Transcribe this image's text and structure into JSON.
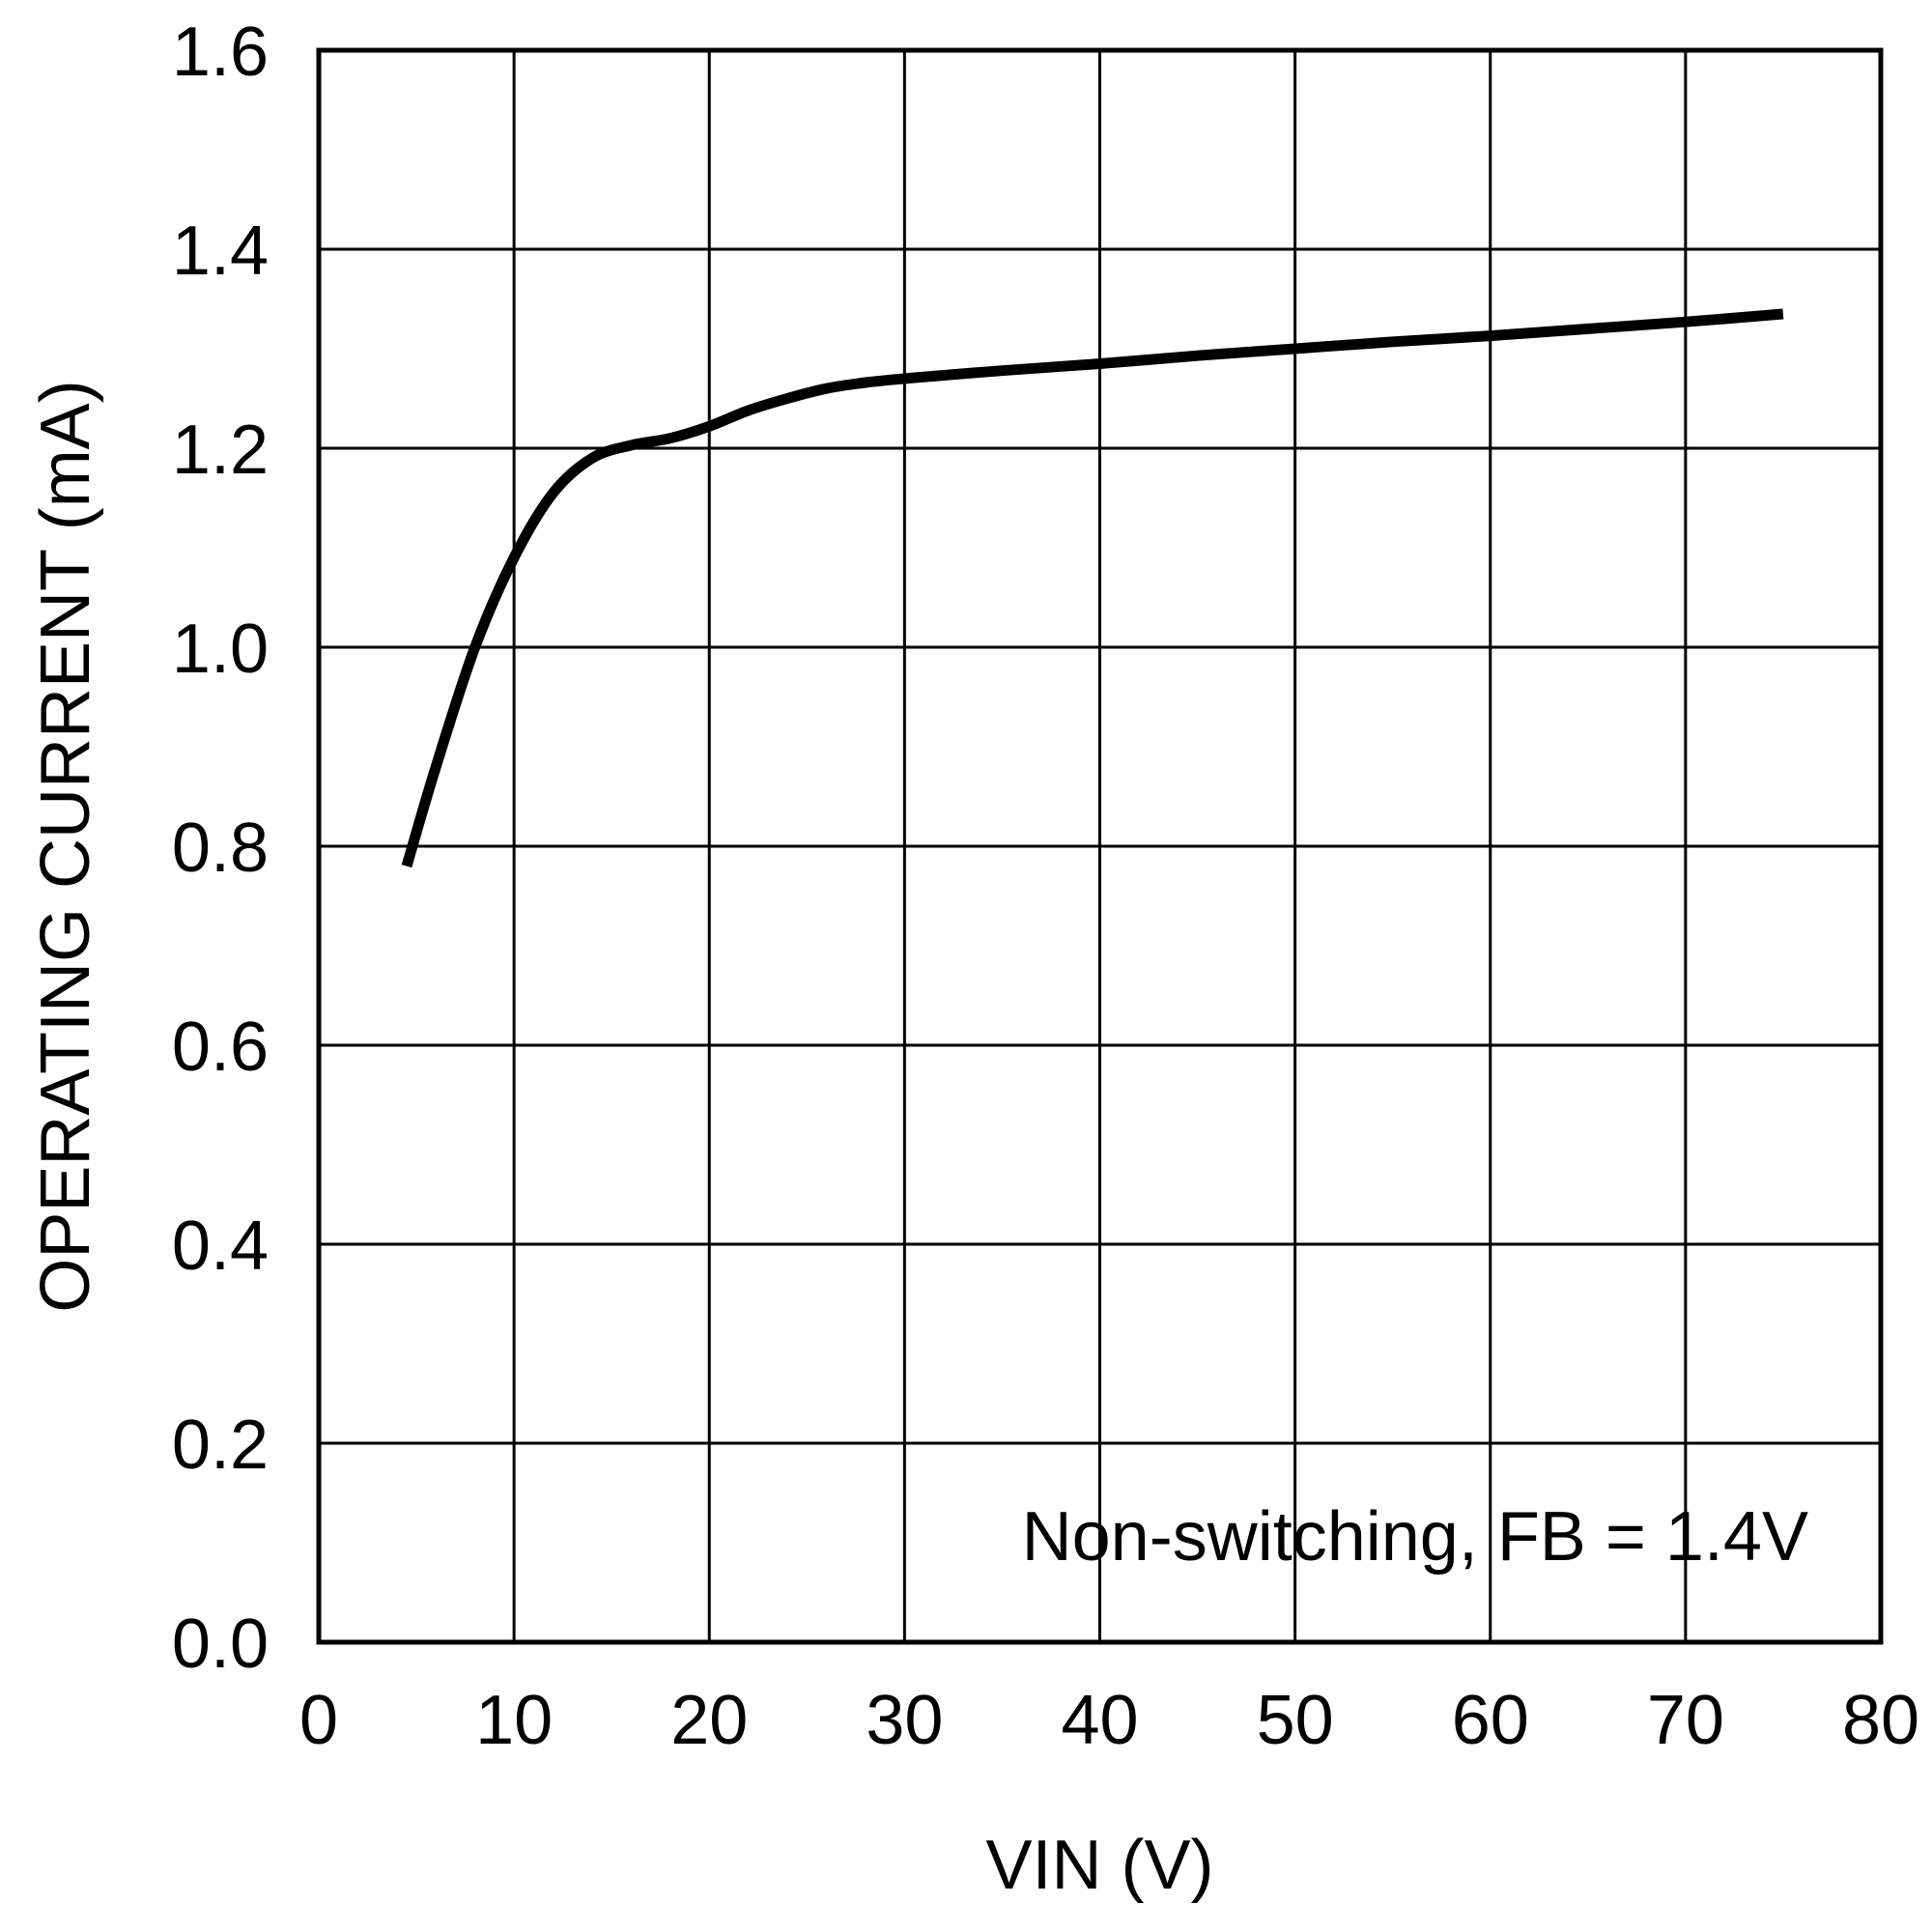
{
  "chart_data": {
    "type": "line",
    "xlabel": "VIN (V)",
    "ylabel": "OPERATING CURRENT (mA)",
    "xlim": [
      0,
      80
    ],
    "ylim": [
      0.0,
      1.6
    ],
    "x_ticks": [
      "0",
      "10",
      "20",
      "30",
      "40",
      "50",
      "60",
      "70",
      "80"
    ],
    "y_ticks": [
      "0.0",
      "0.2",
      "0.4",
      "0.6",
      "0.8",
      "1.0",
      "1.2",
      "1.4",
      "1.6"
    ],
    "grid": true,
    "annotation": "Non-switching, FB = 1.4V",
    "series": [
      {
        "color": "#000000",
        "x": [
          4.5,
          6,
          8,
          10,
          12,
          14,
          16,
          18,
          20,
          22,
          24,
          26,
          28,
          30,
          35,
          40,
          45,
          50,
          55,
          60,
          65,
          70,
          75
        ],
        "y": [
          0.78,
          0.88,
          1.0,
          1.09,
          1.155,
          1.19,
          1.203,
          1.21,
          1.222,
          1.238,
          1.25,
          1.26,
          1.266,
          1.27,
          1.278,
          1.285,
          1.293,
          1.3,
          1.307,
          1.313,
          1.32,
          1.327,
          1.335
        ]
      }
    ]
  }
}
